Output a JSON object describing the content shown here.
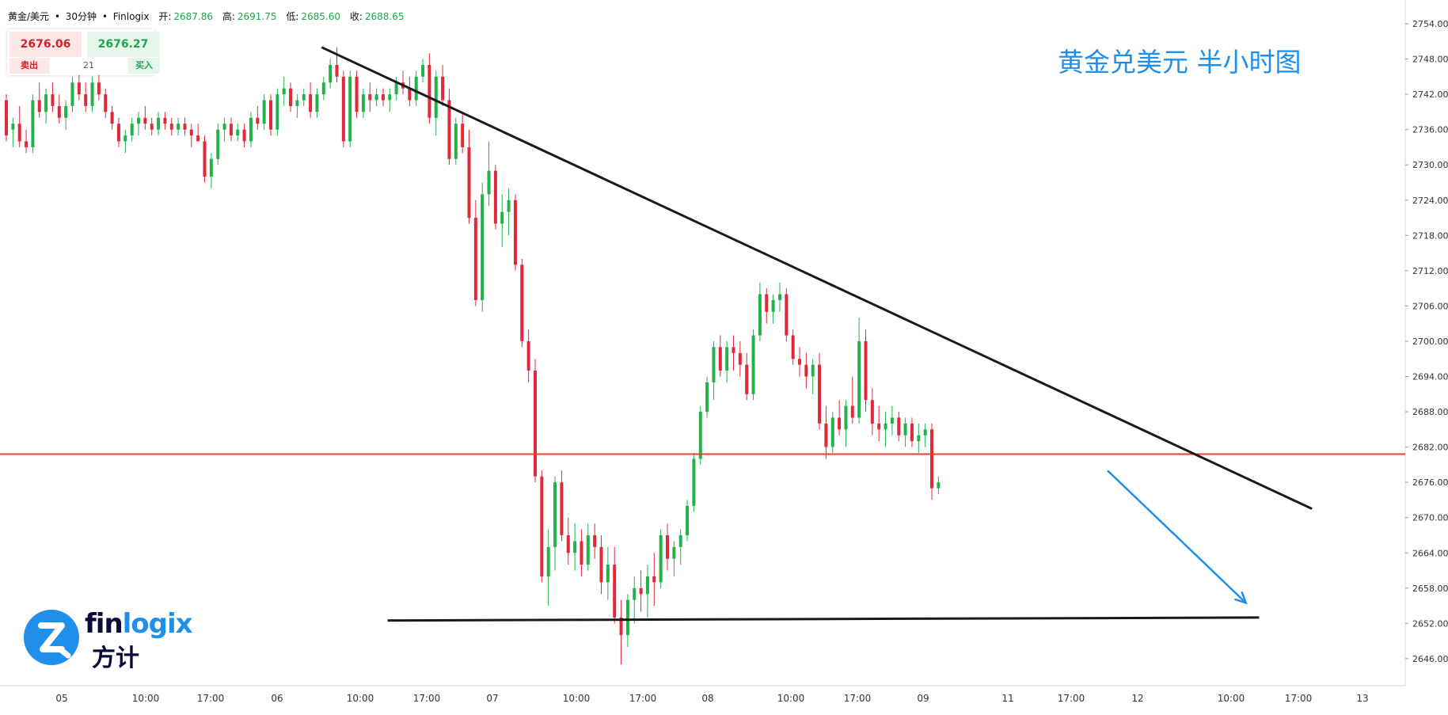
{
  "header": {
    "symbol": "黄金/美元",
    "sep1": "•",
    "timeframe": "30分钟",
    "sep2": "•",
    "source": "Finlogix",
    "open_label": "开:",
    "open_value": "2687.86",
    "high_label": "高:",
    "high_value": "2691.75",
    "low_label": "低:",
    "low_value": "2685.60",
    "close_label": "收:",
    "close_value": "2688.65"
  },
  "trade_panel": {
    "sell_price": "2676.06",
    "buy_price": "2676.27",
    "sell_label": "卖出",
    "spread": "21",
    "buy_label": "买入"
  },
  "annotation": {
    "title": "黄金兑美元 半小时图"
  },
  "logo": {
    "word_left": "fin",
    "word_accent": "logix",
    "cn": "方计",
    "icon": "finlogix-z-icon"
  },
  "colors": {
    "up": "#22b24c",
    "down": "#e0293a",
    "support_resistance": "#e8402a",
    "trendline": "#1a1a1a",
    "arrow": "#1f8fea",
    "annotation": "#1f8fea"
  },
  "chart_data": {
    "type": "candlestick",
    "symbol": "XAU/USD",
    "timeframe": "30m",
    "y_axis": {
      "ticks": [
        "2754.00",
        "2748.00",
        "2742.00",
        "2736.00",
        "2730.00",
        "2724.00",
        "2718.00",
        "2712.00",
        "2706.00",
        "2700.00",
        "2694.00",
        "2688.00",
        "2682.00",
        "2676.00",
        "2670.00",
        "2664.00",
        "2658.00",
        "2652.00",
        "2646.00"
      ],
      "ylim": [
        2641.5,
        2757
      ]
    },
    "x_axis": {
      "ticks": [
        "05",
        "10:00",
        "17:00",
        "06",
        "10:00",
        "17:00",
        "07",
        "10:00",
        "17:00",
        "08",
        "10:00",
        "17:00",
        "09",
        "11",
        "17:00",
        "12",
        "10:00",
        "17:00",
        "13"
      ]
    },
    "grid": false,
    "candles_ohlc": [
      [
        2741,
        2742,
        2734,
        2735
      ],
      [
        2736,
        2738,
        2733,
        2737
      ],
      [
        2737,
        2740,
        2733,
        2734
      ],
      [
        2734,
        2736,
        2732,
        2733
      ],
      [
        2733,
        2742,
        2732,
        2741
      ],
      [
        2741,
        2744,
        2738,
        2739
      ],
      [
        2739,
        2743,
        2737,
        2742
      ],
      [
        2742,
        2744,
        2739,
        2740
      ],
      [
        2740,
        2742,
        2737,
        2738
      ],
      [
        2738,
        2741,
        2736,
        2740
      ],
      [
        2740,
        2745,
        2739,
        2744
      ],
      [
        2744,
        2746,
        2741,
        2742
      ],
      [
        2742,
        2744,
        2739,
        2740
      ],
      [
        2740,
        2745,
        2739,
        2744
      ],
      [
        2744,
        2746,
        2741,
        2742
      ],
      [
        2742,
        2743,
        2738,
        2739
      ],
      [
        2739,
        2740,
        2736,
        2737
      ],
      [
        2737,
        2738,
        2733,
        2734
      ],
      [
        2734,
        2736,
        2732,
        2735
      ],
      [
        2735,
        2738,
        2734,
        2737
      ],
      [
        2737,
        2739,
        2735,
        2738
      ],
      [
        2738,
        2740,
        2736,
        2737
      ],
      [
        2737,
        2738,
        2735,
        2736
      ],
      [
        2736,
        2739,
        2735,
        2738
      ],
      [
        2738,
        2739,
        2736,
        2737
      ],
      [
        2737,
        2738,
        2735,
        2736
      ],
      [
        2736,
        2738,
        2735,
        2737
      ],
      [
        2737,
        2738,
        2735,
        2736
      ],
      [
        2736,
        2737,
        2733,
        2735
      ],
      [
        2735,
        2737,
        2734,
        2734
      ],
      [
        2734,
        2735,
        2727,
        2728
      ],
      [
        2728,
        2732,
        2726,
        2731
      ],
      [
        2731,
        2737,
        2730,
        2736
      ],
      [
        2736,
        2738,
        2734,
        2737
      ],
      [
        2737,
        2738,
        2734,
        2735
      ],
      [
        2735,
        2737,
        2734,
        2736
      ],
      [
        2736,
        2737,
        2733,
        2734
      ],
      [
        2734,
        2739,
        2733,
        2738
      ],
      [
        2738,
        2740,
        2736,
        2737
      ],
      [
        2737,
        2742,
        2736,
        2741
      ],
      [
        2741,
        2742,
        2735,
        2736
      ],
      [
        2736,
        2743,
        2735,
        2742
      ],
      [
        2742,
        2745,
        2740,
        2743
      ],
      [
        2743,
        2744,
        2739,
        2740
      ],
      [
        2740,
        2742,
        2738,
        2741
      ],
      [
        2741,
        2743,
        2740,
        2742
      ],
      [
        2742,
        2744,
        2738,
        2739
      ],
      [
        2739,
        2743,
        2738,
        2742
      ],
      [
        2742,
        2745,
        2741,
        2744
      ],
      [
        2744,
        2748,
        2743,
        2747
      ],
      [
        2747,
        2750,
        2744,
        2745
      ],
      [
        2745,
        2746,
        2733,
        2734
      ],
      [
        2734,
        2746,
        2733,
        2745
      ],
      [
        2745,
        2746,
        2738,
        2739
      ],
      [
        2739,
        2743,
        2738,
        2742
      ],
      [
        2742,
        2744,
        2739,
        2741
      ],
      [
        2741,
        2743,
        2740,
        2742
      ],
      [
        2742,
        2743,
        2740,
        2741
      ],
      [
        2741,
        2743,
        2739,
        2742
      ],
      [
        2742,
        2745,
        2741,
        2744
      ],
      [
        2744,
        2746,
        2742,
        2743
      ],
      [
        2743,
        2745,
        2740,
        2741
      ],
      [
        2741,
        2746,
        2740,
        2745
      ],
      [
        2745,
        2748,
        2744,
        2747
      ],
      [
        2747,
        2749,
        2737,
        2738
      ],
      [
        2738,
        2746,
        2735,
        2745
      ],
      [
        2745,
        2747,
        2740,
        2741
      ],
      [
        2741,
        2743,
        2730,
        2731
      ],
      [
        2731,
        2738,
        2730,
        2737
      ],
      [
        2737,
        2739,
        2732,
        2733
      ],
      [
        2733,
        2736,
        2720,
        2721
      ],
      [
        2721,
        2724,
        2706,
        2707
      ],
      [
        2707,
        2727,
        2705,
        2725
      ],
      [
        2725,
        2734,
        2723,
        2729
      ],
      [
        2729,
        2730,
        2719,
        2720
      ],
      [
        2720,
        2725,
        2716,
        2722
      ],
      [
        2722,
        2726,
        2718,
        2724
      ],
      [
        2724,
        2725,
        2712,
        2713
      ],
      [
        2713,
        2714,
        2699,
        2700
      ],
      [
        2700,
        2702,
        2693,
        2695
      ],
      [
        2695,
        2697,
        2676,
        2677
      ],
      [
        2677,
        2678,
        2659,
        2660
      ],
      [
        2660,
        2668,
        2655,
        2665
      ],
      [
        2665,
        2677,
        2661,
        2676
      ],
      [
        2676,
        2678,
        2666,
        2667
      ],
      [
        2667,
        2670,
        2662,
        2664
      ],
      [
        2664,
        2669,
        2661,
        2666
      ],
      [
        2666,
        2668,
        2660,
        2662
      ],
      [
        2662,
        2669,
        2661,
        2667
      ],
      [
        2667,
        2669,
        2663,
        2665
      ],
      [
        2665,
        2667,
        2657,
        2659
      ],
      [
        2659,
        2665,
        2656,
        2662
      ],
      [
        2662,
        2665,
        2652,
        2653
      ],
      [
        2653,
        2656,
        2645,
        2650
      ],
      [
        2650,
        2657,
        2648,
        2656
      ],
      [
        2656,
        2660,
        2652,
        2658
      ],
      [
        2658,
        2661,
        2654,
        2657
      ],
      [
        2657,
        2662,
        2653,
        2660
      ],
      [
        2660,
        2664,
        2655,
        2659
      ],
      [
        2659,
        2668,
        2658,
        2667
      ],
      [
        2667,
        2669,
        2661,
        2663
      ],
      [
        2663,
        2666,
        2660,
        2665
      ],
      [
        2665,
        2668,
        2662,
        2667
      ],
      [
        2667,
        2673,
        2666,
        2672
      ],
      [
        2672,
        2681,
        2671,
        2680
      ],
      [
        2680,
        2689,
        2679,
        2688
      ],
      [
        2688,
        2694,
        2687,
        2693
      ],
      [
        2693,
        2700,
        2690,
        2699
      ],
      [
        2699,
        2701,
        2694,
        2695
      ],
      [
        2695,
        2700,
        2693,
        2699
      ],
      [
        2699,
        2701,
        2695,
        2698
      ],
      [
        2698,
        2700,
        2694,
        2696
      ],
      [
        2696,
        2698,
        2690,
        2691
      ],
      [
        2691,
        2702,
        2690,
        2701
      ],
      [
        2701,
        2710,
        2700,
        2708
      ],
      [
        2708,
        2709,
        2703,
        2705
      ],
      [
        2705,
        2708,
        2703,
        2707
      ],
      [
        2707,
        2710,
        2705,
        2708
      ],
      [
        2708,
        2709,
        2700,
        2701
      ],
      [
        2701,
        2702,
        2696,
        2697
      ],
      [
        2697,
        2699,
        2694,
        2696
      ],
      [
        2696,
        2698,
        2692,
        2694
      ],
      [
        2694,
        2697,
        2691,
        2696
      ],
      [
        2696,
        2698,
        2685,
        2686
      ],
      [
        2686,
        2689,
        2680,
        2682
      ],
      [
        2682,
        2688,
        2681,
        2687
      ],
      [
        2687,
        2690,
        2684,
        2685
      ],
      [
        2685,
        2690,
        2682,
        2689
      ],
      [
        2689,
        2694,
        2686,
        2687
      ],
      [
        2687,
        2704,
        2686,
        2700
      ],
      [
        2700,
        2702,
        2688,
        2690
      ],
      [
        2690,
        2692,
        2684,
        2686
      ],
      [
        2686,
        2689,
        2683,
        2685
      ],
      [
        2685,
        2688,
        2682,
        2686
      ],
      [
        2686,
        2689,
        2684,
        2687
      ],
      [
        2687,
        2688,
        2683,
        2684
      ],
      [
        2684,
        2687,
        2682,
        2686
      ],
      [
        2686,
        2687,
        2682,
        2683
      ],
      [
        2683,
        2686,
        2681,
        2684
      ],
      [
        2684,
        2686,
        2682,
        2685
      ],
      [
        2685,
        2686,
        2673,
        2675
      ],
      [
        2675,
        2677,
        2674,
        2676
      ]
    ],
    "levels": [
      {
        "type": "horizontal",
        "value": 2680.8,
        "color": "#e8402a"
      },
      {
        "type": "trendline",
        "from": [
          "06 12:00",
          2750
        ],
        "to": [
          "12 22:00",
          2671.5
        ],
        "color": "#1a1a1a"
      },
      {
        "type": "trendline",
        "from": [
          "06 17:00",
          2652.5
        ],
        "to": [
          "12 18:00",
          2653
        ],
        "color": "#1a1a1a"
      },
      {
        "type": "arrow",
        "from": [
          "11 16:00",
          2678
        ],
        "to": [
          "12 17:00",
          2655.5
        ],
        "color": "#1f8fea"
      }
    ]
  }
}
